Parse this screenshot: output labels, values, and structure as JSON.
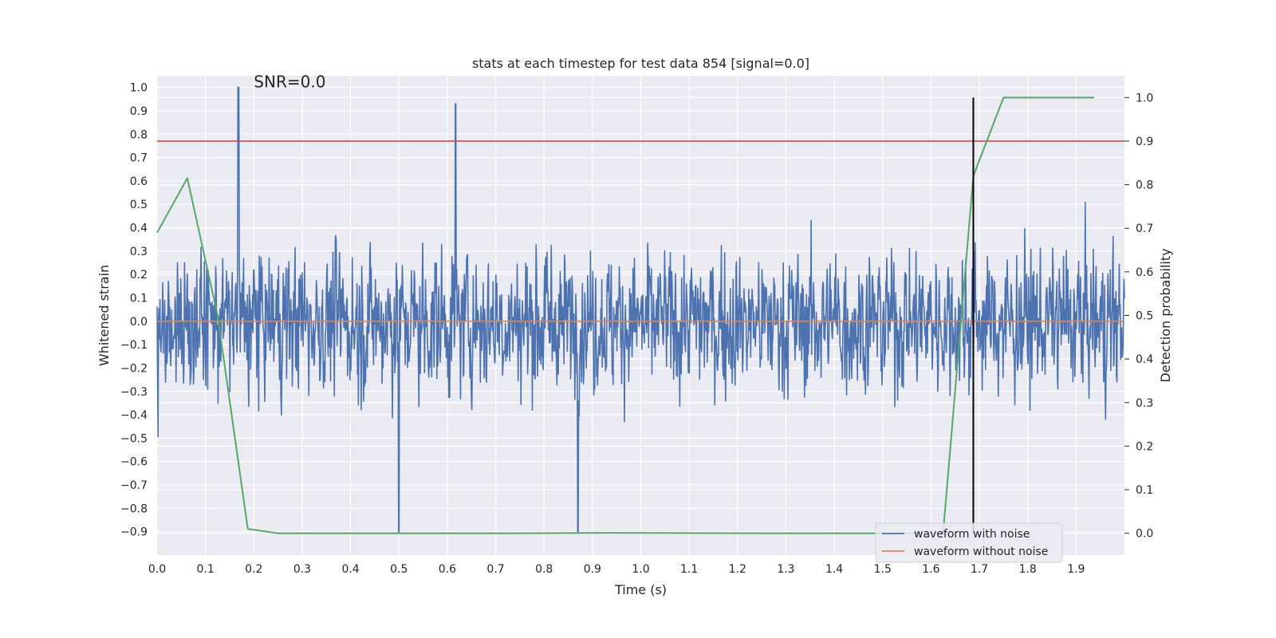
{
  "chart_data": {
    "type": "line",
    "title": "stats at each timestep for test data 854 [signal=0.0]",
    "annotation": "SNR=0.0",
    "xlabel": "Time (s)",
    "ylabel_left": "Whitened strain",
    "ylabel_right": "Detection probability",
    "xlim": [
      0.0,
      2.0
    ],
    "ylim_left": [
      -1.0,
      1.05
    ],
    "ylim_right": [
      -0.05,
      1.05
    ],
    "x_ticks": [
      "0.0",
      "0.1",
      "0.2",
      "0.3",
      "0.4",
      "0.5",
      "0.6",
      "0.7",
      "0.8",
      "0.9",
      "1.0",
      "1.1",
      "1.2",
      "1.3",
      "1.4",
      "1.5",
      "1.6",
      "1.7",
      "1.8",
      "1.9"
    ],
    "y_left_ticks": [
      "1.0",
      "0.9",
      "0.8",
      "0.7",
      "0.6",
      "0.5",
      "0.4",
      "0.3",
      "0.2",
      "0.1",
      "0.0",
      "−0.1",
      "−0.2",
      "−0.3",
      "−0.4",
      "−0.5",
      "−0.6",
      "−0.7",
      "−0.8",
      "−0.9"
    ],
    "y_right_ticks": [
      "1.0",
      "0.9",
      "0.8",
      "0.7",
      "0.6",
      "0.5",
      "0.4",
      "0.3",
      "0.2",
      "0.1",
      "0.0"
    ],
    "grid": true,
    "legend_position": "bottom-right",
    "series": [
      {
        "name": "waveform with noise",
        "color": "#4c72b0",
        "axis": "left",
        "note": "noise-like whitened strain with ~2048 samples, mostly within ±0.5, peak 1.0 at t≈0.168",
        "peaks": [
          {
            "x": 0.168,
            "y": 1.0
          },
          {
            "x": 0.617,
            "y": 0.93
          },
          {
            "x": 0.5,
            "y": -0.9
          },
          {
            "x": 0.87,
            "y": -0.9
          }
        ]
      },
      {
        "name": "waveform without noise",
        "color": "#dd8452",
        "axis": "left",
        "x": [
          0.0,
          2.0
        ],
        "y": [
          0.0,
          0.0
        ]
      },
      {
        "color": "#55a868",
        "axis": "right",
        "x": [
          0.0,
          0.0625,
          0.125,
          0.1875,
          0.25,
          0.5,
          0.75,
          0.9375,
          1.25,
          1.5,
          1.625,
          1.6875,
          1.75,
          1.875,
          1.9375
        ],
        "y": [
          0.69,
          0.815,
          0.5,
          0.01,
          0.0,
          0.0,
          0.0,
          0.001,
          0.0,
          0.0,
          0.0,
          0.82,
          1.0,
          1.0,
          1.0
        ]
      }
    ],
    "threshold_line": {
      "axis": "right",
      "y": 0.9,
      "color": "#c44e52"
    },
    "vertical_line": {
      "x": 1.6875,
      "y_from": 0.0,
      "y_to": 1.0,
      "axis": "right",
      "color": "#000000"
    },
    "colors": {
      "plot_background": "#eaeaf2",
      "grid": "#ffffff",
      "page_background": "#ffffff"
    }
  }
}
